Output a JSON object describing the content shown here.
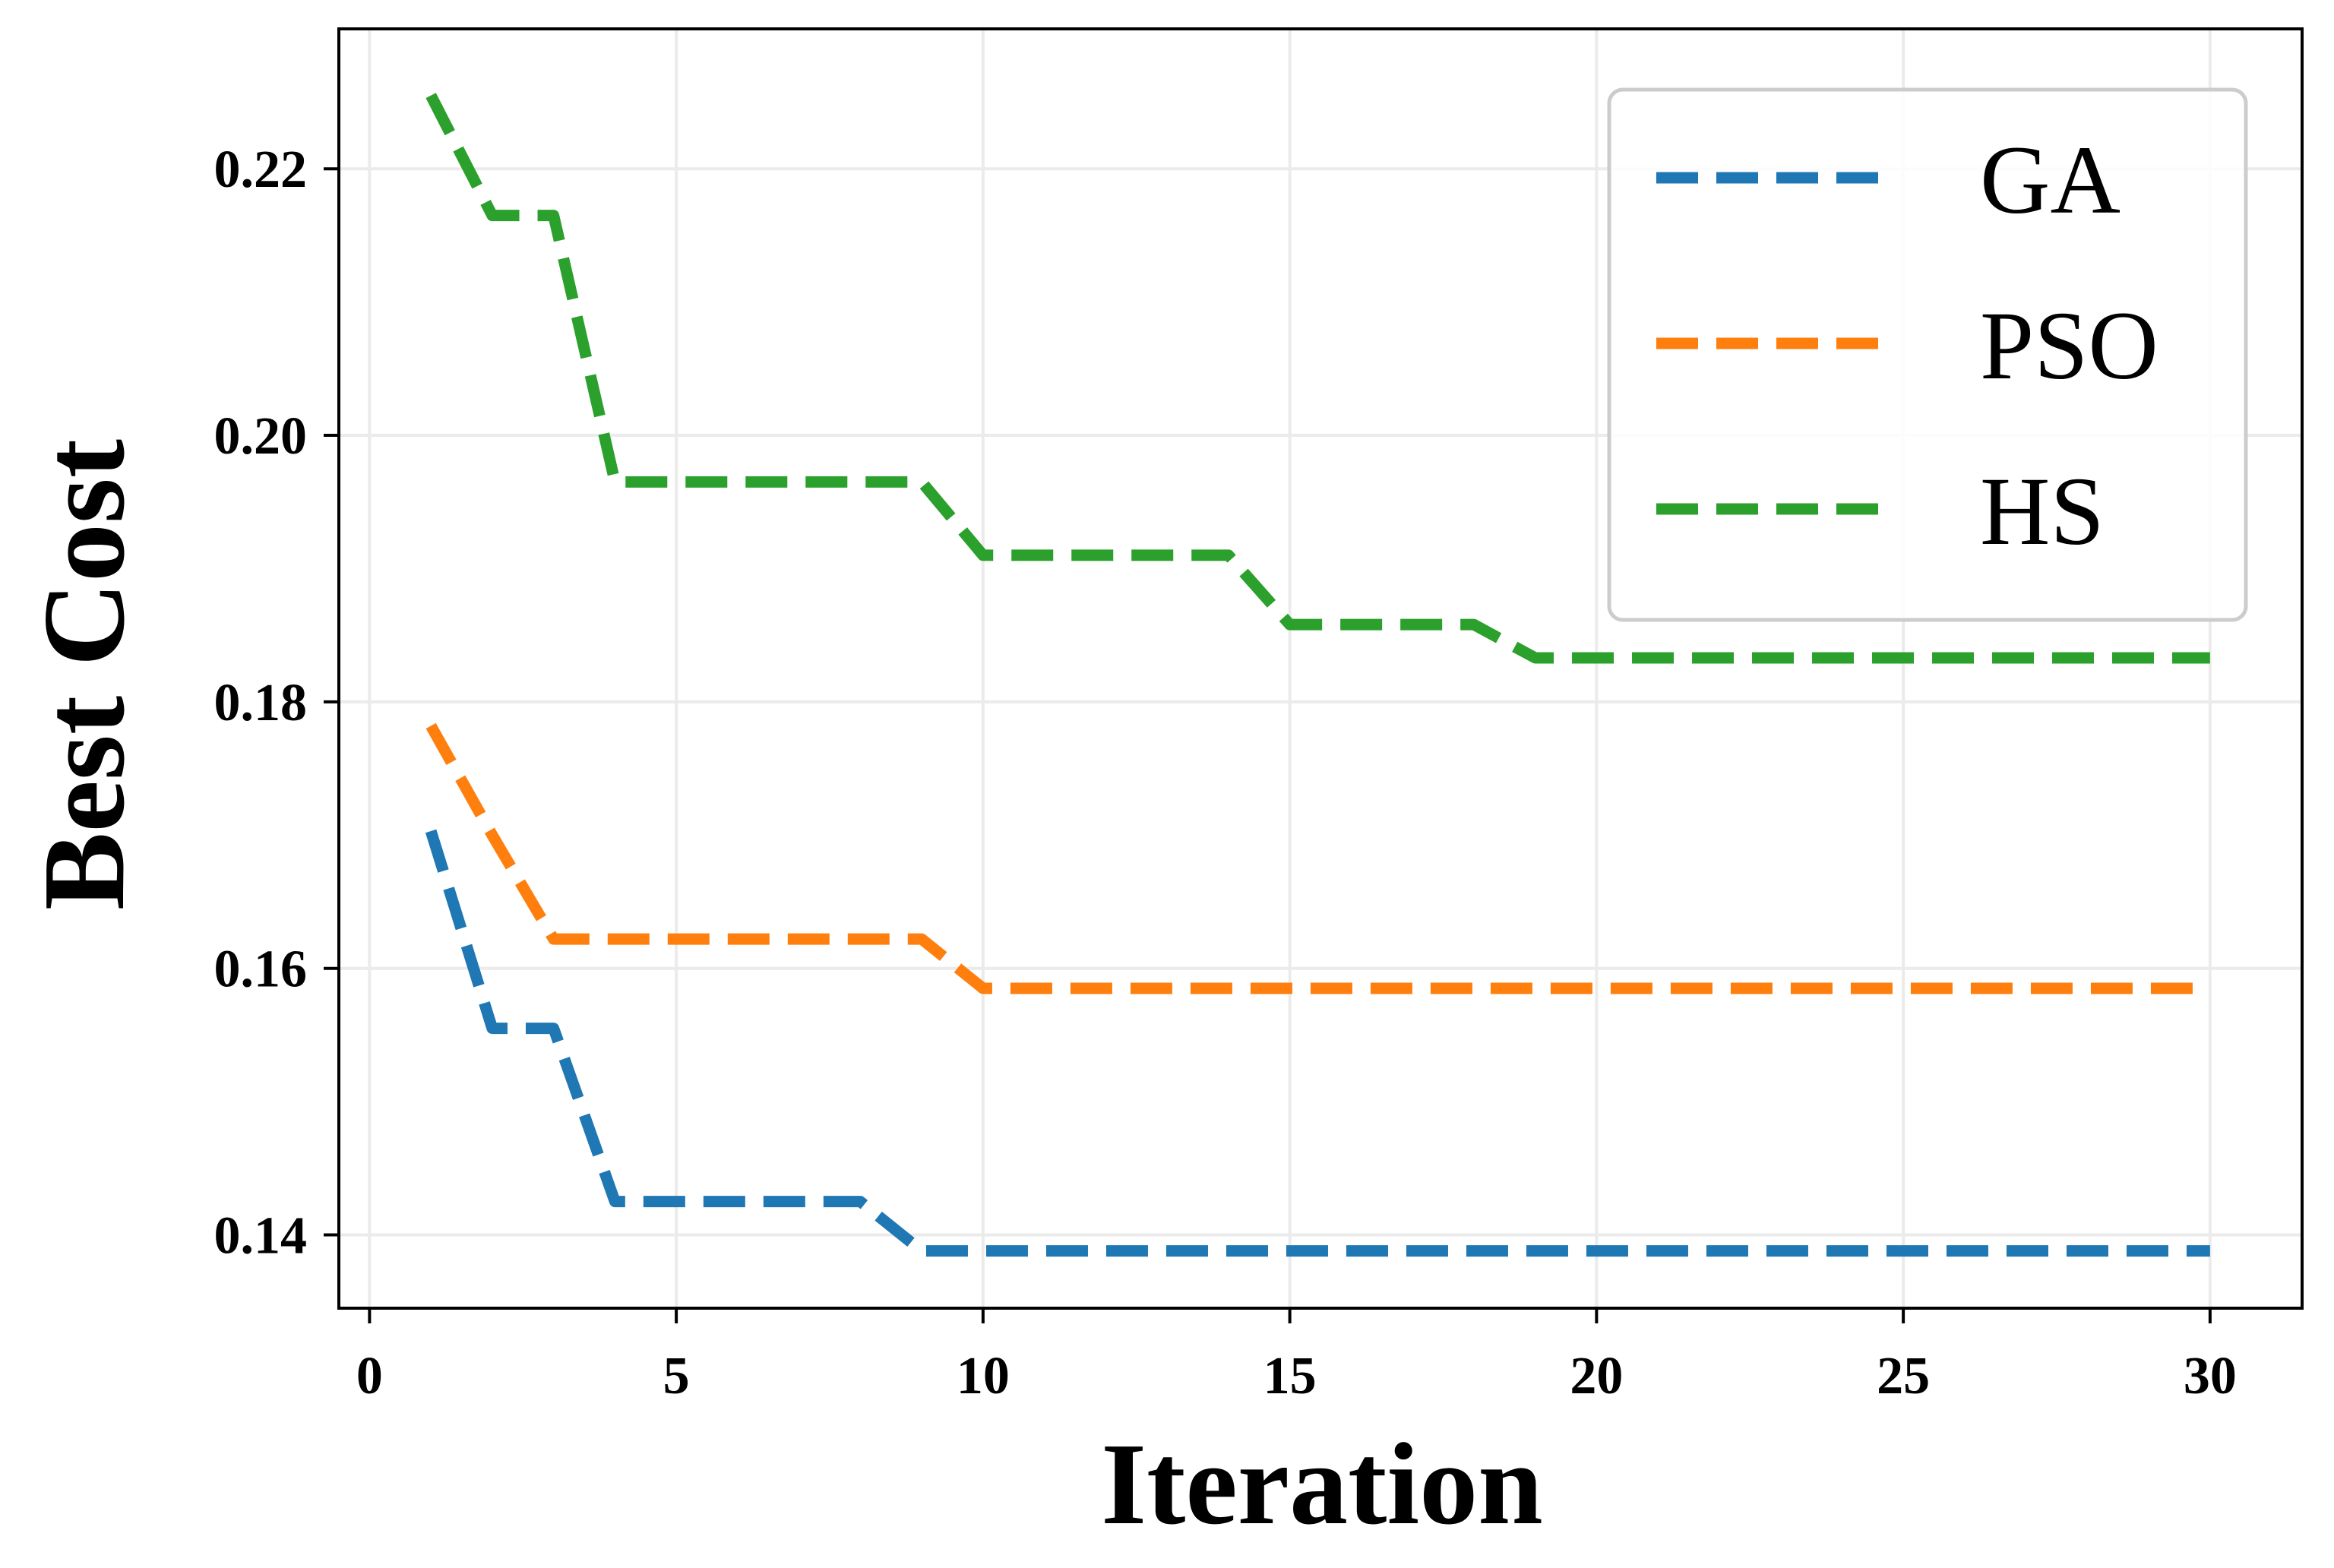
{
  "chart_data": {
    "type": "line",
    "title": "",
    "xlabel": "Iteration",
    "ylabel": "Best Cost",
    "xlim": [
      -0.5,
      31.5
    ],
    "ylim": [
      0.1345,
      0.2305
    ],
    "xticks": [
      0,
      5,
      10,
      15,
      20,
      25,
      30
    ],
    "xtick_labels": [
      "0",
      "5",
      "10",
      "15",
      "20",
      "25",
      "30"
    ],
    "yticks": [
      0.14,
      0.16,
      0.18,
      0.2,
      0.22
    ],
    "ytick_labels": [
      "0.14",
      "0.16",
      "0.18",
      "0.20",
      "0.22"
    ],
    "grid": true,
    "legend_position": "top-right",
    "line_style": "dashed",
    "x": [
      1,
      2,
      3,
      4,
      5,
      6,
      7,
      8,
      9,
      10,
      11,
      12,
      13,
      14,
      15,
      16,
      17,
      18,
      19,
      20,
      21,
      22,
      23,
      24,
      25,
      26,
      27,
      28,
      29,
      30
    ],
    "series": [
      {
        "name": "GA",
        "color": "#1f77b4",
        "values": [
          0.1703,
          0.1555,
          0.1555,
          0.1425,
          0.1425,
          0.1425,
          0.1425,
          0.1425,
          0.1388,
          0.1388,
          0.1388,
          0.1388,
          0.1388,
          0.1388,
          0.1388,
          0.1388,
          0.1388,
          0.1388,
          0.1388,
          0.1388,
          0.1388,
          0.1388,
          0.1388,
          0.1388,
          0.1388,
          0.1388,
          0.1388,
          0.1388,
          0.1388,
          0.1388
        ]
      },
      {
        "name": "PSO",
        "color": "#ff7f0e",
        "values": [
          0.1782,
          0.17,
          0.1622,
          0.1622,
          0.1622,
          0.1622,
          0.1622,
          0.1622,
          0.1622,
          0.1585,
          0.1585,
          0.1585,
          0.1585,
          0.1585,
          0.1585,
          0.1585,
          0.1585,
          0.1585,
          0.1585,
          0.1585,
          0.1585,
          0.1585,
          0.1585,
          0.1585,
          0.1585,
          0.1585,
          0.1585,
          0.1585,
          0.1585,
          0.1585
        ]
      },
      {
        "name": "HS",
        "color": "#2ca02c",
        "values": [
          0.2255,
          0.2165,
          0.2165,
          0.1965,
          0.1965,
          0.1965,
          0.1965,
          0.1965,
          0.1965,
          0.191,
          0.191,
          0.191,
          0.191,
          0.191,
          0.1858,
          0.1858,
          0.1858,
          0.1858,
          0.1833,
          0.1833,
          0.1833,
          0.1833,
          0.1833,
          0.1833,
          0.1833,
          0.1833,
          0.1833,
          0.1833,
          0.1833,
          0.1833
        ]
      }
    ]
  }
}
